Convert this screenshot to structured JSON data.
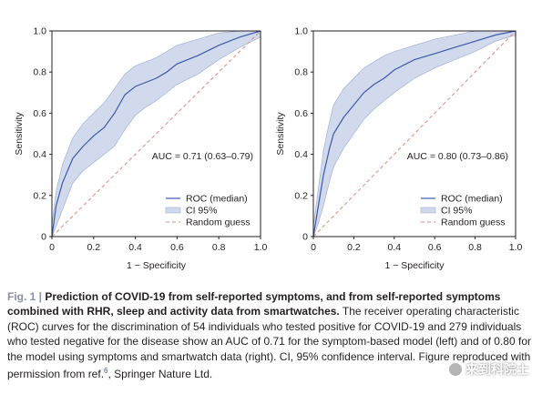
{
  "chart_data": [
    {
      "type": "line",
      "xlabel": "1 − Specificity",
      "ylabel": "Sensitivity",
      "xlim": [
        0,
        1
      ],
      "ylim": [
        0,
        1
      ],
      "xticks": [
        "0",
        "0.2",
        "0.4",
        "0.6",
        "0.8",
        "1.0"
      ],
      "yticks": [
        "0",
        "0.2",
        "0.4",
        "0.6",
        "0.8",
        "1.0"
      ],
      "grid": false,
      "legend_placement": "bottom-right",
      "annotation": "AUC = 0.71 (0.63–0.79)",
      "series": [
        {
          "name": "ROC (median)",
          "color": "#3b5ba8",
          "x": [
            0,
            0.02,
            0.05,
            0.1,
            0.15,
            0.2,
            0.25,
            0.3,
            0.35,
            0.4,
            0.45,
            0.5,
            0.55,
            0.6,
            0.7,
            0.8,
            0.9,
            1.0
          ],
          "y": [
            0,
            0.15,
            0.26,
            0.38,
            0.44,
            0.49,
            0.53,
            0.6,
            0.69,
            0.73,
            0.75,
            0.77,
            0.8,
            0.84,
            0.88,
            0.93,
            0.97,
            1.0
          ]
        },
        {
          "name": "CI 95%",
          "color": "#cfd8ec",
          "x": [
            0,
            0.02,
            0.05,
            0.1,
            0.15,
            0.2,
            0.25,
            0.3,
            0.35,
            0.4,
            0.45,
            0.5,
            0.55,
            0.6,
            0.7,
            0.8,
            0.9,
            1.0
          ],
          "upper": [
            0.06,
            0.22,
            0.35,
            0.48,
            0.55,
            0.6,
            0.65,
            0.72,
            0.79,
            0.83,
            0.85,
            0.87,
            0.9,
            0.93,
            0.96,
            0.99,
            1.0,
            1.0
          ],
          "lower": [
            0,
            0.05,
            0.13,
            0.26,
            0.32,
            0.36,
            0.4,
            0.44,
            0.52,
            0.59,
            0.63,
            0.66,
            0.7,
            0.74,
            0.79,
            0.86,
            0.92,
            0.97
          ]
        },
        {
          "name": "Random guess",
          "color": "#e08a80",
          "style": "dashed",
          "x": [
            0,
            1
          ],
          "y": [
            0,
            1
          ]
        }
      ]
    },
    {
      "type": "line",
      "xlabel": "1 − Specificity",
      "ylabel": "Sensitivity",
      "xlim": [
        0,
        1
      ],
      "ylim": [
        0,
        1
      ],
      "xticks": [
        "0",
        "0.2",
        "0.4",
        "0.6",
        "0.8",
        "1.0"
      ],
      "yticks": [
        "0",
        "0.2",
        "0.4",
        "0.6",
        "0.8",
        "1.0"
      ],
      "grid": false,
      "legend_placement": "bottom-right",
      "annotation": "AUC = 0.80 (0.73–0.86)",
      "series": [
        {
          "name": "ROC (median)",
          "color": "#3b5ba8",
          "x": [
            0,
            0.02,
            0.05,
            0.08,
            0.1,
            0.15,
            0.2,
            0.25,
            0.3,
            0.35,
            0.4,
            0.5,
            0.6,
            0.7,
            0.8,
            0.9,
            1.0
          ],
          "y": [
            0,
            0.12,
            0.3,
            0.43,
            0.5,
            0.58,
            0.64,
            0.7,
            0.74,
            0.77,
            0.81,
            0.86,
            0.89,
            0.92,
            0.95,
            0.98,
            1.0
          ]
        },
        {
          "name": "CI 95%",
          "color": "#cfd8ec",
          "x": [
            0,
            0.02,
            0.05,
            0.08,
            0.1,
            0.15,
            0.2,
            0.25,
            0.3,
            0.35,
            0.4,
            0.5,
            0.6,
            0.7,
            0.8,
            0.9,
            1.0
          ],
          "upper": [
            0.05,
            0.2,
            0.42,
            0.56,
            0.64,
            0.72,
            0.77,
            0.82,
            0.85,
            0.88,
            0.9,
            0.93,
            0.96,
            0.98,
            1.0,
            1.0,
            1.0
          ],
          "lower": [
            0,
            0.05,
            0.15,
            0.27,
            0.34,
            0.43,
            0.5,
            0.57,
            0.62,
            0.66,
            0.7,
            0.77,
            0.82,
            0.86,
            0.9,
            0.95,
            0.98
          ]
        },
        {
          "name": "Random guess",
          "color": "#e08a80",
          "style": "dashed",
          "x": [
            0,
            1
          ],
          "y": [
            0,
            1
          ]
        }
      ]
    }
  ],
  "caption": {
    "label": "Fig. 1 |",
    "title": "Prediction of COVID-19 from self-reported symptoms, and from self-reported symptoms combined with RHR, sleep and activity data from smartwatches.",
    "body": "The receiver operating characteristic (ROC) curves for the discrimination of 54 individuals who tested positive for COVID-19 and 279 individuals who tested negative for the disease show an AUC of 0.71 for the symptom-based model (left) and of 0.80 for the model using symptoms and smartwatch data (right). CI, 95% confidence interval. Figure reproduced with permission from ref.",
    "ref_number": "6",
    "tail": ", Springer Nature Ltd."
  },
  "watermark": {
    "text": "来到科院士"
  }
}
